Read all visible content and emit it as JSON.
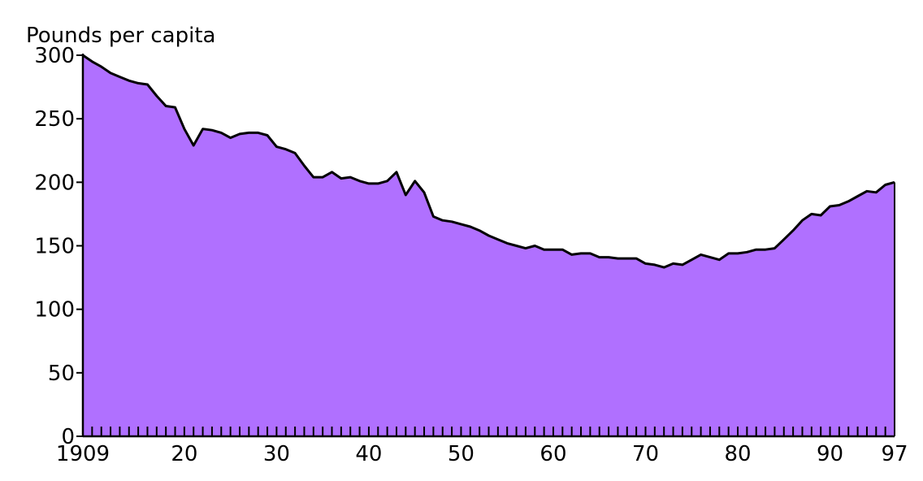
{
  "chart_data": {
    "type": "area",
    "title": "",
    "ylabel": "Pounds per capita",
    "xlabel": "",
    "ylim": [
      0,
      300
    ],
    "xlim": [
      1909,
      1997
    ],
    "grid": false,
    "legend": "none",
    "fill_color": "#b070ff",
    "line_color": "#000000",
    "y_ticks": [
      {
        "value": 0,
        "label": "0"
      },
      {
        "value": 50,
        "label": "50"
      },
      {
        "value": 100,
        "label": "100"
      },
      {
        "value": 150,
        "label": "150"
      },
      {
        "value": 200,
        "label": "200"
      },
      {
        "value": 250,
        "label": "250"
      },
      {
        "value": 300,
        "label": "300"
      }
    ],
    "x_ticks": [
      {
        "value": 1909,
        "label": "1909"
      },
      {
        "value": 1920,
        "label": "20"
      },
      {
        "value": 1930,
        "label": "30"
      },
      {
        "value": 1940,
        "label": "40"
      },
      {
        "value": 1950,
        "label": "50"
      },
      {
        "value": 1960,
        "label": "60"
      },
      {
        "value": 1970,
        "label": "70"
      },
      {
        "value": 1980,
        "label": "80"
      },
      {
        "value": 1990,
        "label": "90"
      },
      {
        "value": 1997,
        "label": "97"
      }
    ],
    "series": [
      {
        "x": [
          1909,
          1910,
          1911,
          1912,
          1913,
          1914,
          1915,
          1916,
          1917,
          1918,
          1919,
          1920,
          1921,
          1922,
          1923,
          1924,
          1925,
          1926,
          1927,
          1928,
          1929,
          1930,
          1931,
          1932,
          1933,
          1934,
          1935,
          1936,
          1937,
          1938,
          1939,
          1940,
          1941,
          1942,
          1943,
          1944,
          1945,
          1946,
          1947,
          1948,
          1949,
          1950,
          1951,
          1952,
          1953,
          1954,
          1955,
          1956,
          1957,
          1958,
          1959,
          1960,
          1961,
          1962,
          1963,
          1964,
          1965,
          1966,
          1967,
          1968,
          1969,
          1970,
          1971,
          1972,
          1973,
          1974,
          1975,
          1976,
          1977,
          1978,
          1979,
          1980,
          1981,
          1982,
          1983,
          1984,
          1985,
          1986,
          1987,
          1988,
          1989,
          1990,
          1991,
          1992,
          1993,
          1994,
          1995,
          1996,
          1997
        ],
        "values": [
          300,
          295,
          291,
          286,
          283,
          280,
          278,
          277,
          268,
          260,
          259,
          242,
          229,
          242,
          241,
          239,
          235,
          238,
          239,
          239,
          237,
          228,
          226,
          223,
          213,
          204,
          204,
          208,
          203,
          204,
          201,
          199,
          199,
          201,
          208,
          190,
          201,
          192,
          173,
          170,
          169,
          167,
          165,
          162,
          158,
          155,
          152,
          150,
          148,
          150,
          147,
          147,
          147,
          143,
          144,
          144,
          141,
          141,
          140,
          140,
          140,
          136,
          135,
          133,
          136,
          135,
          139,
          143,
          141,
          139,
          144,
          144,
          145,
          147,
          147,
          148,
          155,
          162,
          170,
          175,
          174,
          181,
          182,
          185,
          189,
          193,
          192,
          198,
          200
        ]
      }
    ]
  }
}
